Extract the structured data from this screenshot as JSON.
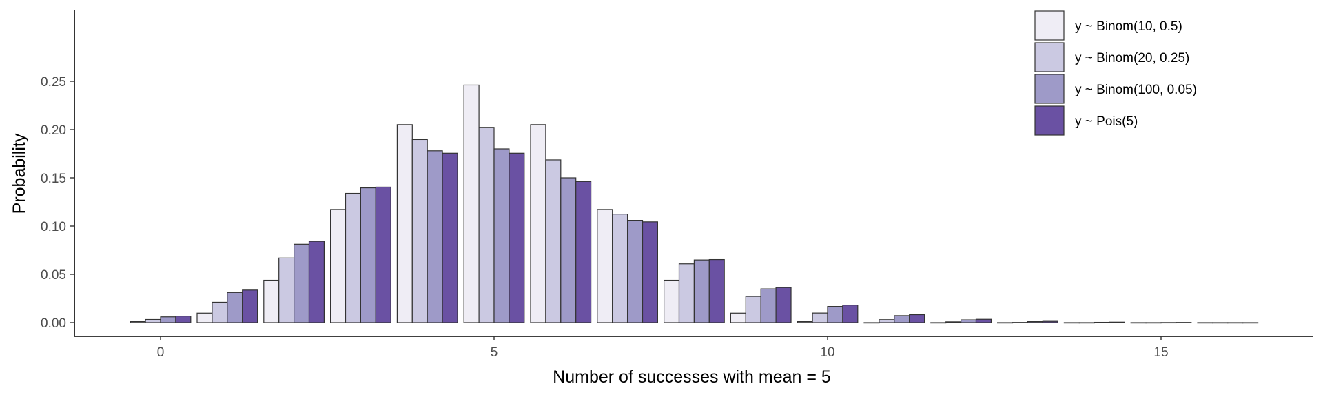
{
  "chart_data": {
    "type": "bar",
    "xlabel": "Number of successes with mean = 5",
    "ylabel": "Probability",
    "x": [
      0,
      1,
      2,
      3,
      4,
      5,
      6,
      7,
      8,
      9,
      10,
      11,
      12,
      13,
      14,
      15,
      16
    ],
    "xticks": [
      0,
      5,
      10,
      15
    ],
    "yticks": [
      "0.00",
      "0.05",
      "0.10",
      "0.15",
      "0.20",
      "0.25"
    ],
    "ylim": [
      0,
      0.25
    ],
    "grid": false,
    "legend_position": "top-right",
    "series": [
      {
        "name": "y ~ Binom(10, 0.5)",
        "color": "#efedf5",
        "values": [
          0.001,
          0.0098,
          0.0439,
          0.1172,
          0.2051,
          0.2461,
          0.2051,
          0.1172,
          0.0439,
          0.0098,
          0.001,
          0,
          0,
          0,
          0,
          0,
          0
        ]
      },
      {
        "name": "y ~ Binom(20, 0.25)",
        "color": "#cbc9e2",
        "values": [
          0.0032,
          0.0211,
          0.0669,
          0.1339,
          0.1897,
          0.2023,
          0.1686,
          0.1124,
          0.0609,
          0.0271,
          0.0099,
          0.003,
          0.0008,
          0.0002,
          0,
          0,
          0
        ]
      },
      {
        "name": "y ~ Binom(100, 0.05)",
        "color": "#9e9ac8",
        "values": [
          0.0059,
          0.0312,
          0.0812,
          0.1396,
          0.178,
          0.18,
          0.15,
          0.106,
          0.0649,
          0.0349,
          0.0167,
          0.0072,
          0.0028,
          0.001,
          0.0003,
          0.0001,
          0
        ]
      },
      {
        "name": "y ~ Pois(5)",
        "color": "#6a51a3",
        "values": [
          0.0067,
          0.0337,
          0.0842,
          0.1404,
          0.1755,
          0.1755,
          0.1462,
          0.1044,
          0.0653,
          0.0363,
          0.0181,
          0.0082,
          0.0034,
          0.0013,
          0.0005,
          0.0002,
          0
        ]
      }
    ]
  }
}
